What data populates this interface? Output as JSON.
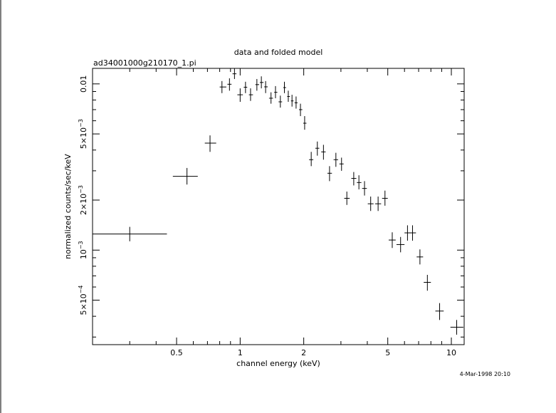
{
  "chart_data": {
    "type": "scatter",
    "title": "data and folded model",
    "subtitle": "ad34001000g210170_1.pi",
    "xlabel": "channel energy (keV)",
    "ylabel": "normalized counts/sec/keV",
    "timestamp": "4-Mar-1998 20:10",
    "x_scale": "log",
    "y_scale": "log",
    "xlim": [
      0.2,
      11.5
    ],
    "ylim": [
      0.00027,
      0.0124
    ],
    "x_ticks": [
      {
        "value": 0.5,
        "label": "0.5"
      },
      {
        "value": 1,
        "label": "1"
      },
      {
        "value": 2,
        "label": "2"
      },
      {
        "value": 5,
        "label": "5"
      },
      {
        "value": 10,
        "label": "10"
      }
    ],
    "y_ticks": [
      {
        "value": 0.01,
        "label": "0.01",
        "mantissa": "",
        "exponent": ""
      },
      {
        "value": 0.005,
        "label": "",
        "mantissa": "5×10",
        "exponent": "−3"
      },
      {
        "value": 0.002,
        "label": "",
        "mantissa": "2×10",
        "exponent": "−3"
      },
      {
        "value": 0.001,
        "label": "",
        "mantissa": "10",
        "exponent": "−3"
      },
      {
        "value": 0.0005,
        "label": "",
        "mantissa": "5×10",
        "exponent": "−4"
      }
    ],
    "grid": false,
    "legend": "none",
    "series": [
      {
        "points": [
          {
            "x": 0.3,
            "xlo": 0.2,
            "xhi": 0.45,
            "y": 0.00125,
            "ylo": 0.00113,
            "yhi": 0.00138
          },
          {
            "x": 0.56,
            "xlo": 0.48,
            "xhi": 0.63,
            "y": 0.00278,
            "ylo": 0.00248,
            "yhi": 0.00312
          },
          {
            "x": 0.72,
            "xlo": 0.68,
            "xhi": 0.77,
            "y": 0.0044,
            "ylo": 0.0039,
            "yhi": 0.0049
          },
          {
            "x": 0.82,
            "xlo": 0.8,
            "xhi": 0.86,
            "y": 0.00958,
            "ylo": 0.0088,
            "yhi": 0.0104
          },
          {
            "x": 0.89,
            "xlo": 0.87,
            "xhi": 0.91,
            "y": 0.00995,
            "ylo": 0.0091,
            "yhi": 0.0108
          },
          {
            "x": 0.94,
            "xlo": 0.92,
            "xhi": 0.96,
            "y": 0.0115,
            "ylo": 0.0107,
            "yhi": 0.0124
          },
          {
            "x": 1.0,
            "xlo": 0.97,
            "xhi": 1.03,
            "y": 0.0086,
            "ylo": 0.0078,
            "yhi": 0.0094
          },
          {
            "x": 1.06,
            "xlo": 1.04,
            "xhi": 1.08,
            "y": 0.00955,
            "ylo": 0.0088,
            "yhi": 0.0103
          },
          {
            "x": 1.12,
            "xlo": 1.1,
            "xhi": 1.15,
            "y": 0.0086,
            "ylo": 0.0079,
            "yhi": 0.0094
          },
          {
            "x": 1.2,
            "xlo": 1.18,
            "xhi": 1.23,
            "y": 0.0099,
            "ylo": 0.0091,
            "yhi": 0.0107
          },
          {
            "x": 1.26,
            "xlo": 1.24,
            "xhi": 1.29,
            "y": 0.0102,
            "ylo": 0.0094,
            "yhi": 0.0111
          },
          {
            "x": 1.32,
            "xlo": 1.3,
            "xhi": 1.35,
            "y": 0.0096,
            "ylo": 0.0088,
            "yhi": 0.0104
          },
          {
            "x": 1.4,
            "xlo": 1.37,
            "xhi": 1.43,
            "y": 0.0082,
            "ylo": 0.0076,
            "yhi": 0.0089
          },
          {
            "x": 1.47,
            "xlo": 1.45,
            "xhi": 1.5,
            "y": 0.0089,
            "ylo": 0.0082,
            "yhi": 0.0097
          },
          {
            "x": 1.55,
            "xlo": 1.52,
            "xhi": 1.58,
            "y": 0.0078,
            "ylo": 0.0072,
            "yhi": 0.0085
          },
          {
            "x": 1.62,
            "xlo": 1.6,
            "xhi": 1.65,
            "y": 0.0095,
            "ylo": 0.0088,
            "yhi": 0.0103
          },
          {
            "x": 1.69,
            "xlo": 1.67,
            "xhi": 1.72,
            "y": 0.0084,
            "ylo": 0.0078,
            "yhi": 0.0091
          },
          {
            "x": 1.76,
            "xlo": 1.74,
            "xhi": 1.79,
            "y": 0.0079,
            "ylo": 0.0073,
            "yhi": 0.0086
          },
          {
            "x": 1.84,
            "xlo": 1.81,
            "xhi": 1.87,
            "y": 0.0077,
            "ylo": 0.0071,
            "yhi": 0.0084
          },
          {
            "x": 1.93,
            "xlo": 1.9,
            "xhi": 1.97,
            "y": 0.007,
            "ylo": 0.0064,
            "yhi": 0.0076
          },
          {
            "x": 2.02,
            "xlo": 1.99,
            "xhi": 2.06,
            "y": 0.0058,
            "ylo": 0.0053,
            "yhi": 0.0064
          },
          {
            "x": 2.17,
            "xlo": 2.12,
            "xhi": 2.22,
            "y": 0.0035,
            "ylo": 0.0032,
            "yhi": 0.0039
          },
          {
            "x": 2.32,
            "xlo": 2.27,
            "xhi": 2.37,
            "y": 0.0041,
            "ylo": 0.0037,
            "yhi": 0.0045
          },
          {
            "x": 2.48,
            "xlo": 2.42,
            "xhi": 2.54,
            "y": 0.0039,
            "ylo": 0.0035,
            "yhi": 0.0043
          },
          {
            "x": 2.65,
            "xlo": 2.59,
            "xhi": 2.72,
            "y": 0.0029,
            "ylo": 0.0026,
            "yhi": 0.0032
          },
          {
            "x": 2.84,
            "xlo": 2.77,
            "xhi": 2.91,
            "y": 0.0035,
            "ylo": 0.00317,
            "yhi": 0.00385
          },
          {
            "x": 3.02,
            "xlo": 2.95,
            "xhi": 3.09,
            "y": 0.0033,
            "ylo": 0.003,
            "yhi": 0.0036
          },
          {
            "x": 3.2,
            "xlo": 3.11,
            "xhi": 3.3,
            "y": 0.00205,
            "ylo": 0.00187,
            "yhi": 0.00225
          },
          {
            "x": 3.45,
            "xlo": 3.36,
            "xhi": 3.55,
            "y": 0.0027,
            "ylo": 0.00245,
            "yhi": 0.00295
          },
          {
            "x": 3.65,
            "xlo": 3.57,
            "xhi": 3.75,
            "y": 0.00255,
            "ylo": 0.00232,
            "yhi": 0.00282
          },
          {
            "x": 3.88,
            "xlo": 3.78,
            "xhi": 3.98,
            "y": 0.00235,
            "ylo": 0.00213,
            "yhi": 0.0026
          },
          {
            "x": 4.15,
            "xlo": 4.02,
            "xhi": 4.28,
            "y": 0.0019,
            "ylo": 0.00172,
            "yhi": 0.0021
          },
          {
            "x": 4.5,
            "xlo": 4.36,
            "xhi": 4.65,
            "y": 0.0019,
            "ylo": 0.00172,
            "yhi": 0.0021
          },
          {
            "x": 4.85,
            "xlo": 4.7,
            "xhi": 5.0,
            "y": 0.00205,
            "ylo": 0.00185,
            "yhi": 0.00228
          },
          {
            "x": 5.25,
            "xlo": 5.05,
            "xhi": 5.45,
            "y": 0.00115,
            "ylo": 0.00103,
            "yhi": 0.00128
          },
          {
            "x": 5.75,
            "xlo": 5.5,
            "xhi": 6.0,
            "y": 0.00108,
            "ylo": 0.00097,
            "yhi": 0.0012
          },
          {
            "x": 6.2,
            "xlo": 6.0,
            "xhi": 6.4,
            "y": 0.00127,
            "ylo": 0.00114,
            "yhi": 0.00141
          },
          {
            "x": 6.55,
            "xlo": 6.3,
            "xhi": 6.8,
            "y": 0.00127,
            "ylo": 0.00114,
            "yhi": 0.00141
          },
          {
            "x": 7.1,
            "xlo": 6.85,
            "xhi": 7.35,
            "y": 0.00091,
            "ylo": 0.00082,
            "yhi": 0.00101
          },
          {
            "x": 7.7,
            "xlo": 7.4,
            "xhi": 8.0,
            "y": 0.00064,
            "ylo": 0.00057,
            "yhi": 0.00071
          },
          {
            "x": 8.8,
            "xlo": 8.4,
            "xhi": 9.2,
            "y": 0.00043,
            "ylo": 0.00038,
            "yhi": 0.00048
          },
          {
            "x": 10.6,
            "xlo": 9.9,
            "xhi": 11.4,
            "y": 0.000344,
            "ylo": 0.00031,
            "yhi": 0.00038
          }
        ]
      }
    ]
  }
}
